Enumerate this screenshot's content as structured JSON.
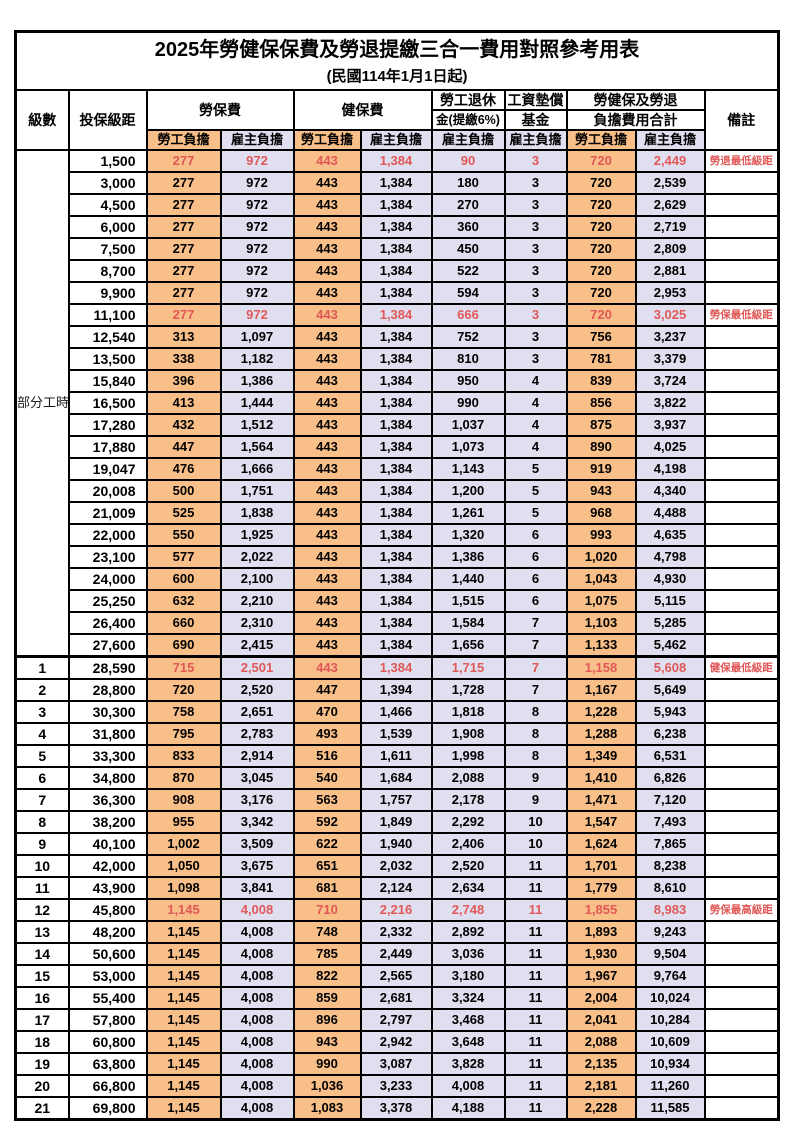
{
  "title": {
    "line1": "2025年勞健保保費及勞退提繳三合一費用對照參考用表",
    "line2": "(民國114年1月1日起)"
  },
  "colors": {
    "employee_col_bg": "#F8BF88",
    "employer_col_bg": "#E0DFF0",
    "highlight_text": "#E05858",
    "grid": "#000000"
  },
  "header": {
    "level": "級數",
    "bracket": "投保級距",
    "labor_insurance": "勞保費",
    "health_insurance": "健保費",
    "pension_line1": "勞工退休",
    "pension_line2": "金(提繳6%)",
    "wage_fund_line1": "工資墊償",
    "wage_fund_line2": "基金",
    "total_line1": "勞健保及勞退",
    "total_line2": "負擔費用合計",
    "remark": "備註",
    "employee": "勞工負擔",
    "employer": "雇主負擔"
  },
  "part_time_label": "部分工時",
  "rows": [
    {
      "level": "",
      "bracket": "1,500",
      "values": [
        "277",
        "972",
        "443",
        "1,384",
        "90",
        "3",
        "720",
        "2,449"
      ],
      "remark": "勞退最低級距",
      "red": true
    },
    {
      "level": "",
      "bracket": "3,000",
      "values": [
        "277",
        "972",
        "443",
        "1,384",
        "180",
        "3",
        "720",
        "2,539"
      ],
      "remark": "",
      "red": false
    },
    {
      "level": "",
      "bracket": "4,500",
      "values": [
        "277",
        "972",
        "443",
        "1,384",
        "270",
        "3",
        "720",
        "2,629"
      ],
      "remark": "",
      "red": false
    },
    {
      "level": "",
      "bracket": "6,000",
      "values": [
        "277",
        "972",
        "443",
        "1,384",
        "360",
        "3",
        "720",
        "2,719"
      ],
      "remark": "",
      "red": false
    },
    {
      "level": "",
      "bracket": "7,500",
      "values": [
        "277",
        "972",
        "443",
        "1,384",
        "450",
        "3",
        "720",
        "2,809"
      ],
      "remark": "",
      "red": false
    },
    {
      "level": "",
      "bracket": "8,700",
      "values": [
        "277",
        "972",
        "443",
        "1,384",
        "522",
        "3",
        "720",
        "2,881"
      ],
      "remark": "",
      "red": false
    },
    {
      "level": "",
      "bracket": "9,900",
      "values": [
        "277",
        "972",
        "443",
        "1,384",
        "594",
        "3",
        "720",
        "2,953"
      ],
      "remark": "",
      "red": false
    },
    {
      "level": "",
      "bracket": "11,100",
      "values": [
        "277",
        "972",
        "443",
        "1,384",
        "666",
        "3",
        "720",
        "3,025"
      ],
      "remark": "勞保最低級距",
      "red": true
    },
    {
      "level": "",
      "bracket": "12,540",
      "values": [
        "313",
        "1,097",
        "443",
        "1,384",
        "752",
        "3",
        "756",
        "3,237"
      ],
      "remark": "",
      "red": false
    },
    {
      "level": "",
      "bracket": "13,500",
      "values": [
        "338",
        "1,182",
        "443",
        "1,384",
        "810",
        "3",
        "781",
        "3,379"
      ],
      "remark": "",
      "red": false
    },
    {
      "level": "",
      "bracket": "15,840",
      "values": [
        "396",
        "1,386",
        "443",
        "1,384",
        "950",
        "4",
        "839",
        "3,724"
      ],
      "remark": "",
      "red": false
    },
    {
      "level": "",
      "bracket": "16,500",
      "values": [
        "413",
        "1,444",
        "443",
        "1,384",
        "990",
        "4",
        "856",
        "3,822"
      ],
      "remark": "",
      "red": false
    },
    {
      "level": "",
      "bracket": "17,280",
      "values": [
        "432",
        "1,512",
        "443",
        "1,384",
        "1,037",
        "4",
        "875",
        "3,937"
      ],
      "remark": "",
      "red": false
    },
    {
      "level": "",
      "bracket": "17,880",
      "values": [
        "447",
        "1,564",
        "443",
        "1,384",
        "1,073",
        "4",
        "890",
        "4,025"
      ],
      "remark": "",
      "red": false
    },
    {
      "level": "",
      "bracket": "19,047",
      "values": [
        "476",
        "1,666",
        "443",
        "1,384",
        "1,143",
        "5",
        "919",
        "4,198"
      ],
      "remark": "",
      "red": false
    },
    {
      "level": "",
      "bracket": "20,008",
      "values": [
        "500",
        "1,751",
        "443",
        "1,384",
        "1,200",
        "5",
        "943",
        "4,340"
      ],
      "remark": "",
      "red": false
    },
    {
      "level": "",
      "bracket": "21,009",
      "values": [
        "525",
        "1,838",
        "443",
        "1,384",
        "1,261",
        "5",
        "968",
        "4,488"
      ],
      "remark": "",
      "red": false
    },
    {
      "level": "",
      "bracket": "22,000",
      "values": [
        "550",
        "1,925",
        "443",
        "1,384",
        "1,320",
        "6",
        "993",
        "4,635"
      ],
      "remark": "",
      "red": false
    },
    {
      "level": "",
      "bracket": "23,100",
      "values": [
        "577",
        "2,022",
        "443",
        "1,384",
        "1,386",
        "6",
        "1,020",
        "4,798"
      ],
      "remark": "",
      "red": false
    },
    {
      "level": "",
      "bracket": "24,000",
      "values": [
        "600",
        "2,100",
        "443",
        "1,384",
        "1,440",
        "6",
        "1,043",
        "4,930"
      ],
      "remark": "",
      "red": false
    },
    {
      "level": "",
      "bracket": "25,250",
      "values": [
        "632",
        "2,210",
        "443",
        "1,384",
        "1,515",
        "6",
        "1,075",
        "5,115"
      ],
      "remark": "",
      "red": false
    },
    {
      "level": "",
      "bracket": "26,400",
      "values": [
        "660",
        "2,310",
        "443",
        "1,384",
        "1,584",
        "7",
        "1,103",
        "5,285"
      ],
      "remark": "",
      "red": false
    },
    {
      "level": "",
      "bracket": "27,600",
      "values": [
        "690",
        "2,415",
        "443",
        "1,384",
        "1,656",
        "7",
        "1,133",
        "5,462"
      ],
      "remark": "",
      "red": false
    },
    {
      "level": "1",
      "bracket": "28,590",
      "values": [
        "715",
        "2,501",
        "443",
        "1,384",
        "1,715",
        "7",
        "1,158",
        "5,608"
      ],
      "remark": "健保最低級距",
      "red": true,
      "group_start": true
    },
    {
      "level": "2",
      "bracket": "28,800",
      "values": [
        "720",
        "2,520",
        "447",
        "1,394",
        "1,728",
        "7",
        "1,167",
        "5,649"
      ],
      "remark": "",
      "red": false
    },
    {
      "level": "3",
      "bracket": "30,300",
      "values": [
        "758",
        "2,651",
        "470",
        "1,466",
        "1,818",
        "8",
        "1,228",
        "5,943"
      ],
      "remark": "",
      "red": false
    },
    {
      "level": "4",
      "bracket": "31,800",
      "values": [
        "795",
        "2,783",
        "493",
        "1,539",
        "1,908",
        "8",
        "1,288",
        "6,238"
      ],
      "remark": "",
      "red": false
    },
    {
      "level": "5",
      "bracket": "33,300",
      "values": [
        "833",
        "2,914",
        "516",
        "1,611",
        "1,998",
        "8",
        "1,349",
        "6,531"
      ],
      "remark": "",
      "red": false
    },
    {
      "level": "6",
      "bracket": "34,800",
      "values": [
        "870",
        "3,045",
        "540",
        "1,684",
        "2,088",
        "9",
        "1,410",
        "6,826"
      ],
      "remark": "",
      "red": false
    },
    {
      "level": "7",
      "bracket": "36,300",
      "values": [
        "908",
        "3,176",
        "563",
        "1,757",
        "2,178",
        "9",
        "1,471",
        "7,120"
      ],
      "remark": "",
      "red": false
    },
    {
      "level": "8",
      "bracket": "38,200",
      "values": [
        "955",
        "3,342",
        "592",
        "1,849",
        "2,292",
        "10",
        "1,547",
        "7,493"
      ],
      "remark": "",
      "red": false
    },
    {
      "level": "9",
      "bracket": "40,100",
      "values": [
        "1,002",
        "3,509",
        "622",
        "1,940",
        "2,406",
        "10",
        "1,624",
        "7,865"
      ],
      "remark": "",
      "red": false
    },
    {
      "level": "10",
      "bracket": "42,000",
      "values": [
        "1,050",
        "3,675",
        "651",
        "2,032",
        "2,520",
        "11",
        "1,701",
        "8,238"
      ],
      "remark": "",
      "red": false
    },
    {
      "level": "11",
      "bracket": "43,900",
      "values": [
        "1,098",
        "3,841",
        "681",
        "2,124",
        "2,634",
        "11",
        "1,779",
        "8,610"
      ],
      "remark": "",
      "red": false
    },
    {
      "level": "12",
      "bracket": "45,800",
      "values": [
        "1,145",
        "4,008",
        "710",
        "2,216",
        "2,748",
        "11",
        "1,855",
        "8,983"
      ],
      "remark": "勞保最高級距",
      "red": true
    },
    {
      "level": "13",
      "bracket": "48,200",
      "values": [
        "1,145",
        "4,008",
        "748",
        "2,332",
        "2,892",
        "11",
        "1,893",
        "9,243"
      ],
      "remark": "",
      "red": false
    },
    {
      "level": "14",
      "bracket": "50,600",
      "values": [
        "1,145",
        "4,008",
        "785",
        "2,449",
        "3,036",
        "11",
        "1,930",
        "9,504"
      ],
      "remark": "",
      "red": false
    },
    {
      "level": "15",
      "bracket": "53,000",
      "values": [
        "1,145",
        "4,008",
        "822",
        "2,565",
        "3,180",
        "11",
        "1,967",
        "9,764"
      ],
      "remark": "",
      "red": false
    },
    {
      "level": "16",
      "bracket": "55,400",
      "values": [
        "1,145",
        "4,008",
        "859",
        "2,681",
        "3,324",
        "11",
        "2,004",
        "10,024"
      ],
      "remark": "",
      "red": false
    },
    {
      "level": "17",
      "bracket": "57,800",
      "values": [
        "1,145",
        "4,008",
        "896",
        "2,797",
        "3,468",
        "11",
        "2,041",
        "10,284"
      ],
      "remark": "",
      "red": false
    },
    {
      "level": "18",
      "bracket": "60,800",
      "values": [
        "1,145",
        "4,008",
        "943",
        "2,942",
        "3,648",
        "11",
        "2,088",
        "10,609"
      ],
      "remark": "",
      "red": false
    },
    {
      "level": "19",
      "bracket": "63,800",
      "values": [
        "1,145",
        "4,008",
        "990",
        "3,087",
        "3,828",
        "11",
        "2,135",
        "10,934"
      ],
      "remark": "",
      "red": false
    },
    {
      "level": "20",
      "bracket": "66,800",
      "values": [
        "1,145",
        "4,008",
        "1,036",
        "3,233",
        "4,008",
        "11",
        "2,181",
        "11,260"
      ],
      "remark": "",
      "red": false
    },
    {
      "level": "21",
      "bracket": "69,800",
      "values": [
        "1,145",
        "4,008",
        "1,083",
        "3,378",
        "4,188",
        "11",
        "2,228",
        "11,585"
      ],
      "remark": "",
      "red": false
    }
  ]
}
